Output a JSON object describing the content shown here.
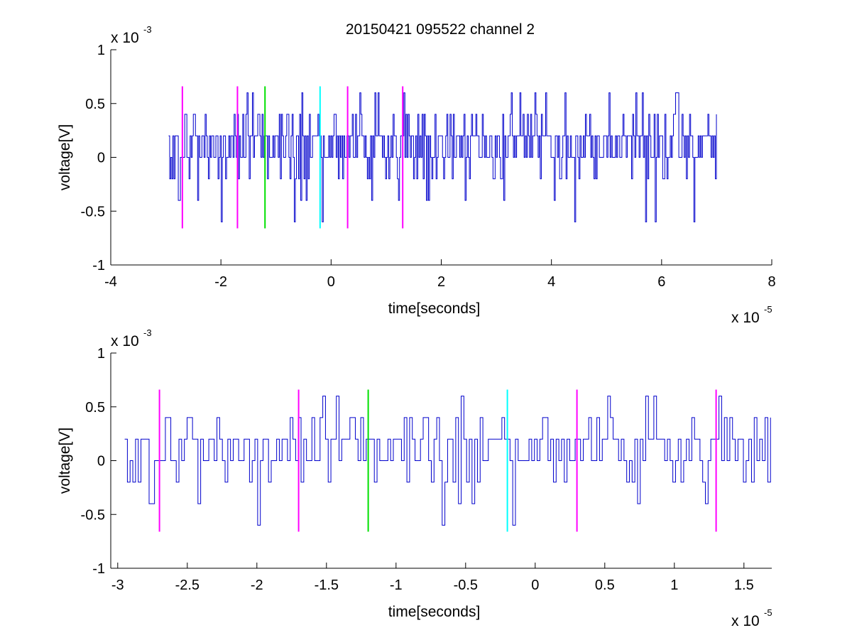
{
  "figure_title": "20150421 095522 channel 2",
  "colors": {
    "signal": "#0000cc",
    "magenta": "#ff00ff",
    "green": "#00e000",
    "cyan": "#00ffff",
    "axis": "#000000"
  },
  "chart_data": [
    {
      "type": "line",
      "title": "20150421 095522 channel 2",
      "xlabel": "time[seconds]",
      "ylabel": "voltage[V]",
      "x_exponent_base": "x 10",
      "x_exponent": "-5",
      "y_exponent_base": "x 10",
      "y_exponent": "-3",
      "xlim": [
        -4,
        8
      ],
      "ylim": [
        -1,
        1
      ],
      "x_ticks": [
        "-4",
        "-2",
        "0",
        "2",
        "4",
        "6",
        "8"
      ],
      "x_tick_values": [
        -4,
        -2,
        0,
        2,
        4,
        6,
        8
      ],
      "y_ticks": [
        "1",
        "0.5",
        "0",
        "-0.5",
        "-1"
      ],
      "y_tick_values": [
        1,
        0.5,
        0,
        -0.5,
        -1
      ],
      "grid": false,
      "series": [
        {
          "seed": 7,
          "x_start": -2.95,
          "x_end": 7.0,
          "step": 0.0195,
          "levels": [
            -0.6,
            -0.4,
            -0.2,
            0,
            0.2,
            0.4,
            0.6
          ],
          "color": "#0000cc"
        }
      ],
      "markers": [
        {
          "x": -2.7,
          "y_min": -0.66,
          "y_max": 0.66,
          "color": "#ff00ff"
        },
        {
          "x": -1.7,
          "y_min": -0.66,
          "y_max": 0.66,
          "color": "#ff00ff"
        },
        {
          "x": -1.2,
          "y_min": -0.66,
          "y_max": 0.66,
          "color": "#00e000"
        },
        {
          "x": -0.2,
          "y_min": -0.66,
          "y_max": 0.66,
          "color": "#00ffff"
        },
        {
          "x": 0.3,
          "y_min": -0.66,
          "y_max": 0.66,
          "color": "#ff00ff"
        },
        {
          "x": 1.3,
          "y_min": -0.66,
          "y_max": 0.66,
          "color": "#ff00ff"
        }
      ]
    },
    {
      "type": "line",
      "title": "",
      "xlabel": "time[seconds]",
      "ylabel": "voltage[V]",
      "x_exponent_base": "x 10",
      "x_exponent": "-5",
      "y_exponent_base": "x 10",
      "y_exponent": "-3",
      "xlim": [
        -3.05,
        1.7
      ],
      "ylim": [
        -1,
        1
      ],
      "x_ticks": [
        "-3",
        "-2.5",
        "-2",
        "-1.5",
        "-1",
        "-0.5",
        "0",
        "0.5",
        "1",
        "1.5"
      ],
      "x_tick_values": [
        -3,
        -2.5,
        -2,
        -1.5,
        -1,
        -0.5,
        0,
        0.5,
        1,
        1.5
      ],
      "y_ticks": [
        "1",
        "0.5",
        "0",
        "-0.5",
        "-1"
      ],
      "y_tick_values": [
        1,
        0.5,
        0,
        -0.5,
        -1
      ],
      "grid": false,
      "series": [
        {
          "seed": 7,
          "x_start": -2.95,
          "x_end": 1.7,
          "step": 0.0195,
          "levels": [
            -0.6,
            -0.4,
            -0.2,
            0,
            0.2,
            0.4,
            0.6
          ],
          "color": "#0000cc"
        }
      ],
      "markers": [
        {
          "x": -2.7,
          "y_min": -0.66,
          "y_max": 0.66,
          "color": "#ff00ff"
        },
        {
          "x": -1.7,
          "y_min": -0.66,
          "y_max": 0.66,
          "color": "#ff00ff"
        },
        {
          "x": -1.2,
          "y_min": -0.66,
          "y_max": 0.66,
          "color": "#00e000"
        },
        {
          "x": -0.2,
          "y_min": -0.66,
          "y_max": 0.66,
          "color": "#00ffff"
        },
        {
          "x": 0.3,
          "y_min": -0.66,
          "y_max": 0.66,
          "color": "#ff00ff"
        },
        {
          "x": 1.3,
          "y_min": -0.66,
          "y_max": 0.66,
          "color": "#ff00ff"
        }
      ]
    }
  ]
}
